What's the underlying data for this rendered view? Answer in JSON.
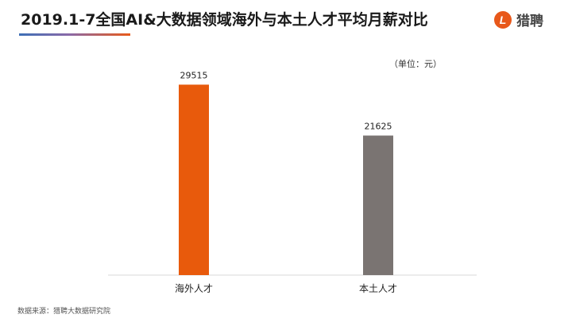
{
  "header": {
    "title": "2019.1-7全国AI&大数据领域海外与本土人才平均月薪对比",
    "logo_mark": "L",
    "logo_text": "猎聘"
  },
  "unit_label": "（单位：元）",
  "source_label": "数据来源：猎聘大数据研究院",
  "colors": {
    "overseas": "#e85a0c",
    "domestic": "#7a7472",
    "accent": "#e8581a"
  },
  "chart_data": {
    "type": "bar",
    "title": "2019.1-7全国AI&大数据领域海外与本土人才平均月薪对比",
    "categories": [
      "海外人才",
      "本土人才"
    ],
    "values": [
      29515,
      21625
    ],
    "colors": [
      "#e85a0c",
      "#7a7472"
    ],
    "ylim": [
      0,
      34500
    ],
    "grid": false,
    "legend": "none"
  }
}
